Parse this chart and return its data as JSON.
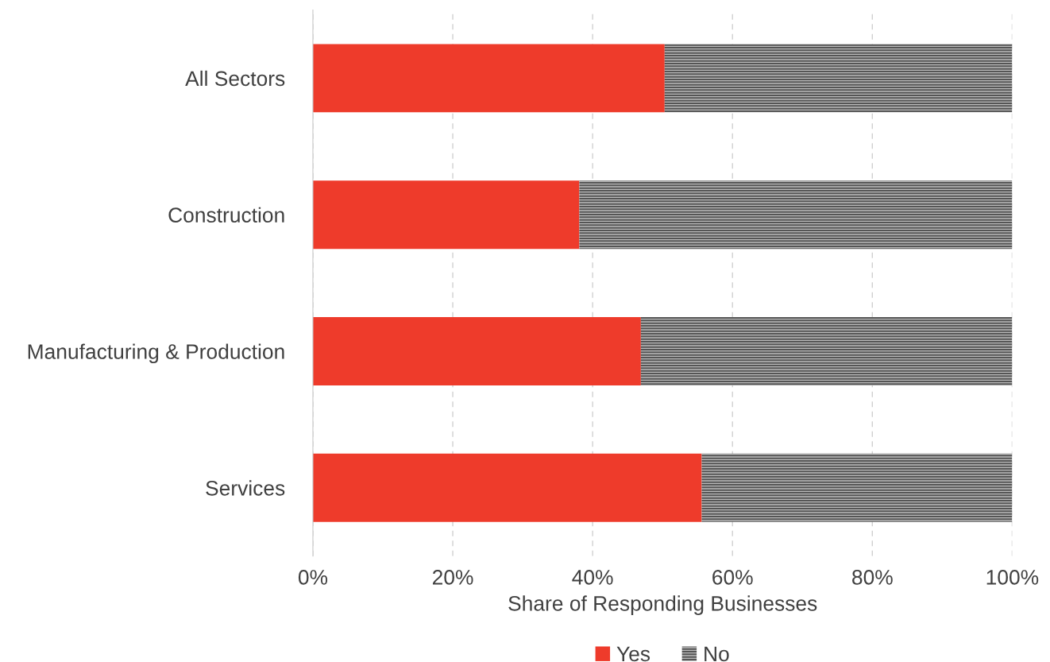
{
  "chart_data": {
    "type": "bar",
    "orientation": "horizontal",
    "stacked": true,
    "categories": [
      "All Sectors",
      "Construction",
      "Manufacturing & Production",
      "Services"
    ],
    "series": [
      {
        "name": "Yes",
        "color": "#ee3b2b",
        "values": [
          50.3,
          38.1,
          46.9,
          55.6
        ]
      },
      {
        "name": "No",
        "color": "#555555",
        "values": [
          49.7,
          61.9,
          53.1,
          44.4
        ]
      }
    ],
    "xlabel": "Share of Responding Businesses",
    "xlim": [
      0,
      100
    ],
    "xticks": [
      {
        "value": 0,
        "label": "0%"
      },
      {
        "value": 20,
        "label": "20%"
      },
      {
        "value": 40,
        "label": "40%"
      },
      {
        "value": 60,
        "label": "60%"
      },
      {
        "value": 80,
        "label": "80%"
      },
      {
        "value": 100,
        "label": "100%"
      }
    ],
    "grid": "x",
    "legend": "bottom"
  }
}
